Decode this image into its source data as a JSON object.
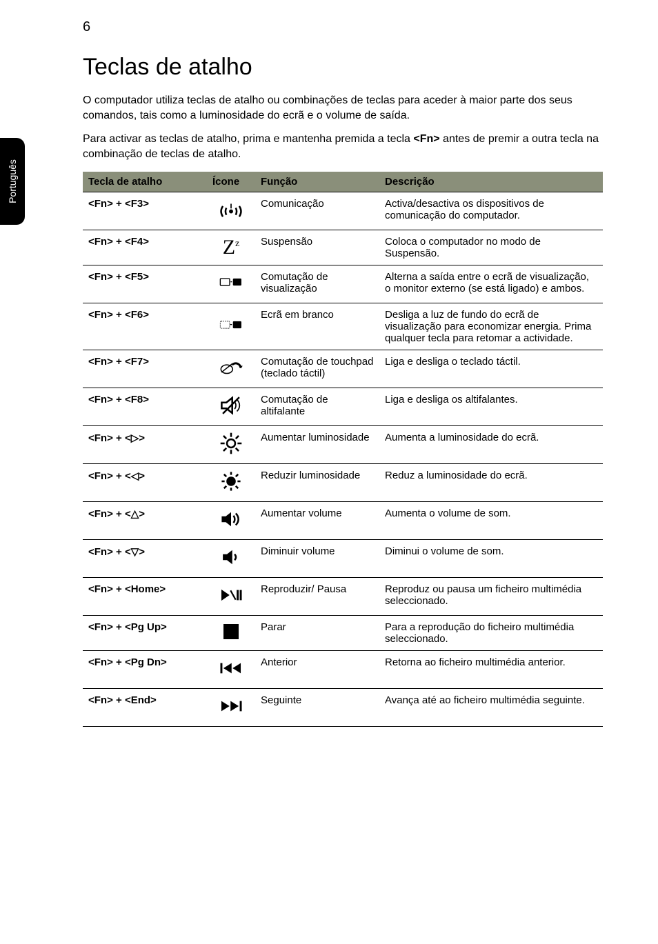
{
  "page_number": "6",
  "side_tab_label": "Português",
  "title": "Teclas de atalho",
  "intro_paragraphs": [
    "O computador utiliza teclas de atalho ou combinações de teclas para aceder à maior parte dos seus comandos, tais como a luminosidade do ecrã e o volume de saída.",
    "Para activar as teclas de atalho, prima e mantenha premida a tecla <Fn> antes de premir a outra tecla na combinação de teclas de atalho."
  ],
  "bold_in_intro": "<Fn>",
  "table": {
    "headers": {
      "key": "Tecla de atalho",
      "icon": "Ícone",
      "func": "Função",
      "desc": "Descrição"
    },
    "rows": [
      {
        "key": "<Fn> + <F3>",
        "icon": "wireless",
        "func": "Comunicação",
        "desc": "Activa/desactiva os dispositivos de comunicação do computador."
      },
      {
        "key": "<Fn> + <F4>",
        "icon": "zz",
        "func": "Suspensão",
        "desc": "Coloca o computador no modo de Suspensão."
      },
      {
        "key": "<Fn> + <F5>",
        "icon": "displays",
        "func": "Comutação de visualização",
        "desc": "Alterna a saída entre o ecrã de visualização, o monitor externo (se está ligado) e ambos."
      },
      {
        "key": "<Fn> + <F6>",
        "icon": "blank",
        "func": "Ecrã em branco",
        "desc": "Desliga a luz de fundo do ecrã de visualização para economizar energia. Prima qualquer tecla para retomar a actividade."
      },
      {
        "key": "<Fn> + <F7>",
        "icon": "touchpad",
        "func": "Comutação de touchpad (teclado táctil)",
        "desc": "Liga e desliga o teclado táctil."
      },
      {
        "key": "<Fn> + <F8>",
        "icon": "mute",
        "func": "Comutação de altifalante",
        "desc": "Liga e desliga os altifalantes."
      },
      {
        "key": "<Fn> + <▷>",
        "icon": "bright-up",
        "func": "Aumentar luminosidade",
        "desc": "Aumenta a luminosidade do ecrã."
      },
      {
        "key": "<Fn> + <◁>",
        "icon": "bright-down",
        "func": "Reduzir luminosidade",
        "desc": "Reduz a luminosidade do ecrã."
      },
      {
        "key": "<Fn> + <△>",
        "icon": "vol-up",
        "func": "Aumentar volume",
        "desc": "Aumenta o volume de som."
      },
      {
        "key": "<Fn> + <▽>",
        "icon": "vol-down",
        "func": "Diminuir volume",
        "desc": "Diminui o volume de som."
      },
      {
        "key": "<Fn> + <Home>",
        "icon": "play",
        "func": "Reproduzir/ Pausa",
        "desc": "Reproduz ou pausa um ficheiro multimédia seleccionado."
      },
      {
        "key": "<Fn> + <Pg Up>",
        "icon": "stop",
        "func": "Parar",
        "desc": "Para a reprodução do ficheiro multimédia seleccionado."
      },
      {
        "key": "<Fn> + <Pg Dn>",
        "icon": "prev",
        "func": "Anterior",
        "desc": "Retorna ao ficheiro multimédia anterior."
      },
      {
        "key": "<Fn> + <End>",
        "icon": "next",
        "func": "Seguinte",
        "desc": "Avança até ao ficheiro multimédia seguinte."
      }
    ]
  },
  "colors": {
    "header_bg": "#8a8f7a",
    "row_border": "#000000",
    "text": "#000000",
    "page_bg": "#ffffff",
    "side_tab_bg": "#000000",
    "side_tab_fg": "#ffffff"
  },
  "typography": {
    "title_fontsize_pt": 26,
    "body_fontsize_pt": 12,
    "table_fontsize_pt": 11,
    "pagenum_fontsize_pt": 15
  }
}
